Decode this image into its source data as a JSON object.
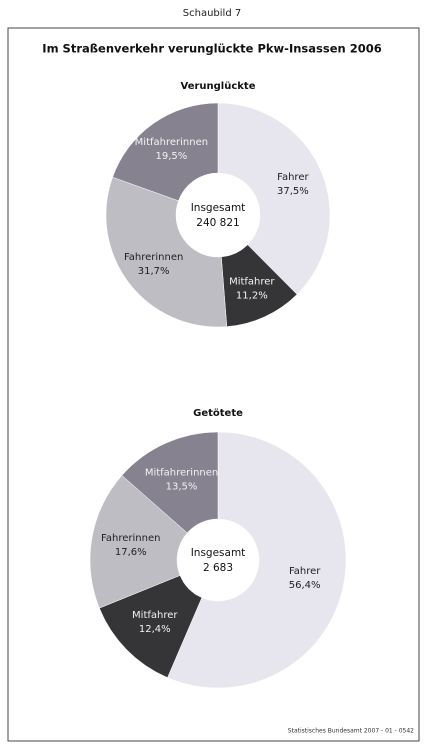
{
  "caption": "Schaubild 7",
  "title": "Im Straßenverkehr verunglückte Pkw-Insassen 2006",
  "source": "Statistisches Bundesamt 2007 - 01 - 0542",
  "chart_data": [
    {
      "type": "pie",
      "subtitle": "Verunglückte",
      "categories": [
        "Fahrer",
        "Mitfahrer",
        "Fahrerinnen",
        "Mitfahrerinnen"
      ],
      "values": [
        37.5,
        11.2,
        31.7,
        19.5
      ],
      "value_labels": [
        "37,5%",
        "11,2%",
        "31,7%",
        "19,5%"
      ],
      "colors": [
        "#e7e6ee",
        "#353437",
        "#bebdc4",
        "#87828f"
      ],
      "center_label": "Insgesamt",
      "total": 240821,
      "total_label": "240 821"
    },
    {
      "type": "pie",
      "subtitle": "Getötete",
      "categories": [
        "Fahrer",
        "Mitfahrer",
        "Fahrerinnen",
        "Mitfahrerinnen"
      ],
      "values": [
        56.4,
        12.4,
        17.6,
        13.5
      ],
      "value_labels": [
        "56,4%",
        "12,4%",
        "17,6%",
        "13,5%"
      ],
      "colors": [
        "#e7e6ee",
        "#353437",
        "#bebdc4",
        "#87828f"
      ],
      "center_label": "Insgesamt",
      "total": 2683,
      "total_label": "2 683"
    }
  ]
}
